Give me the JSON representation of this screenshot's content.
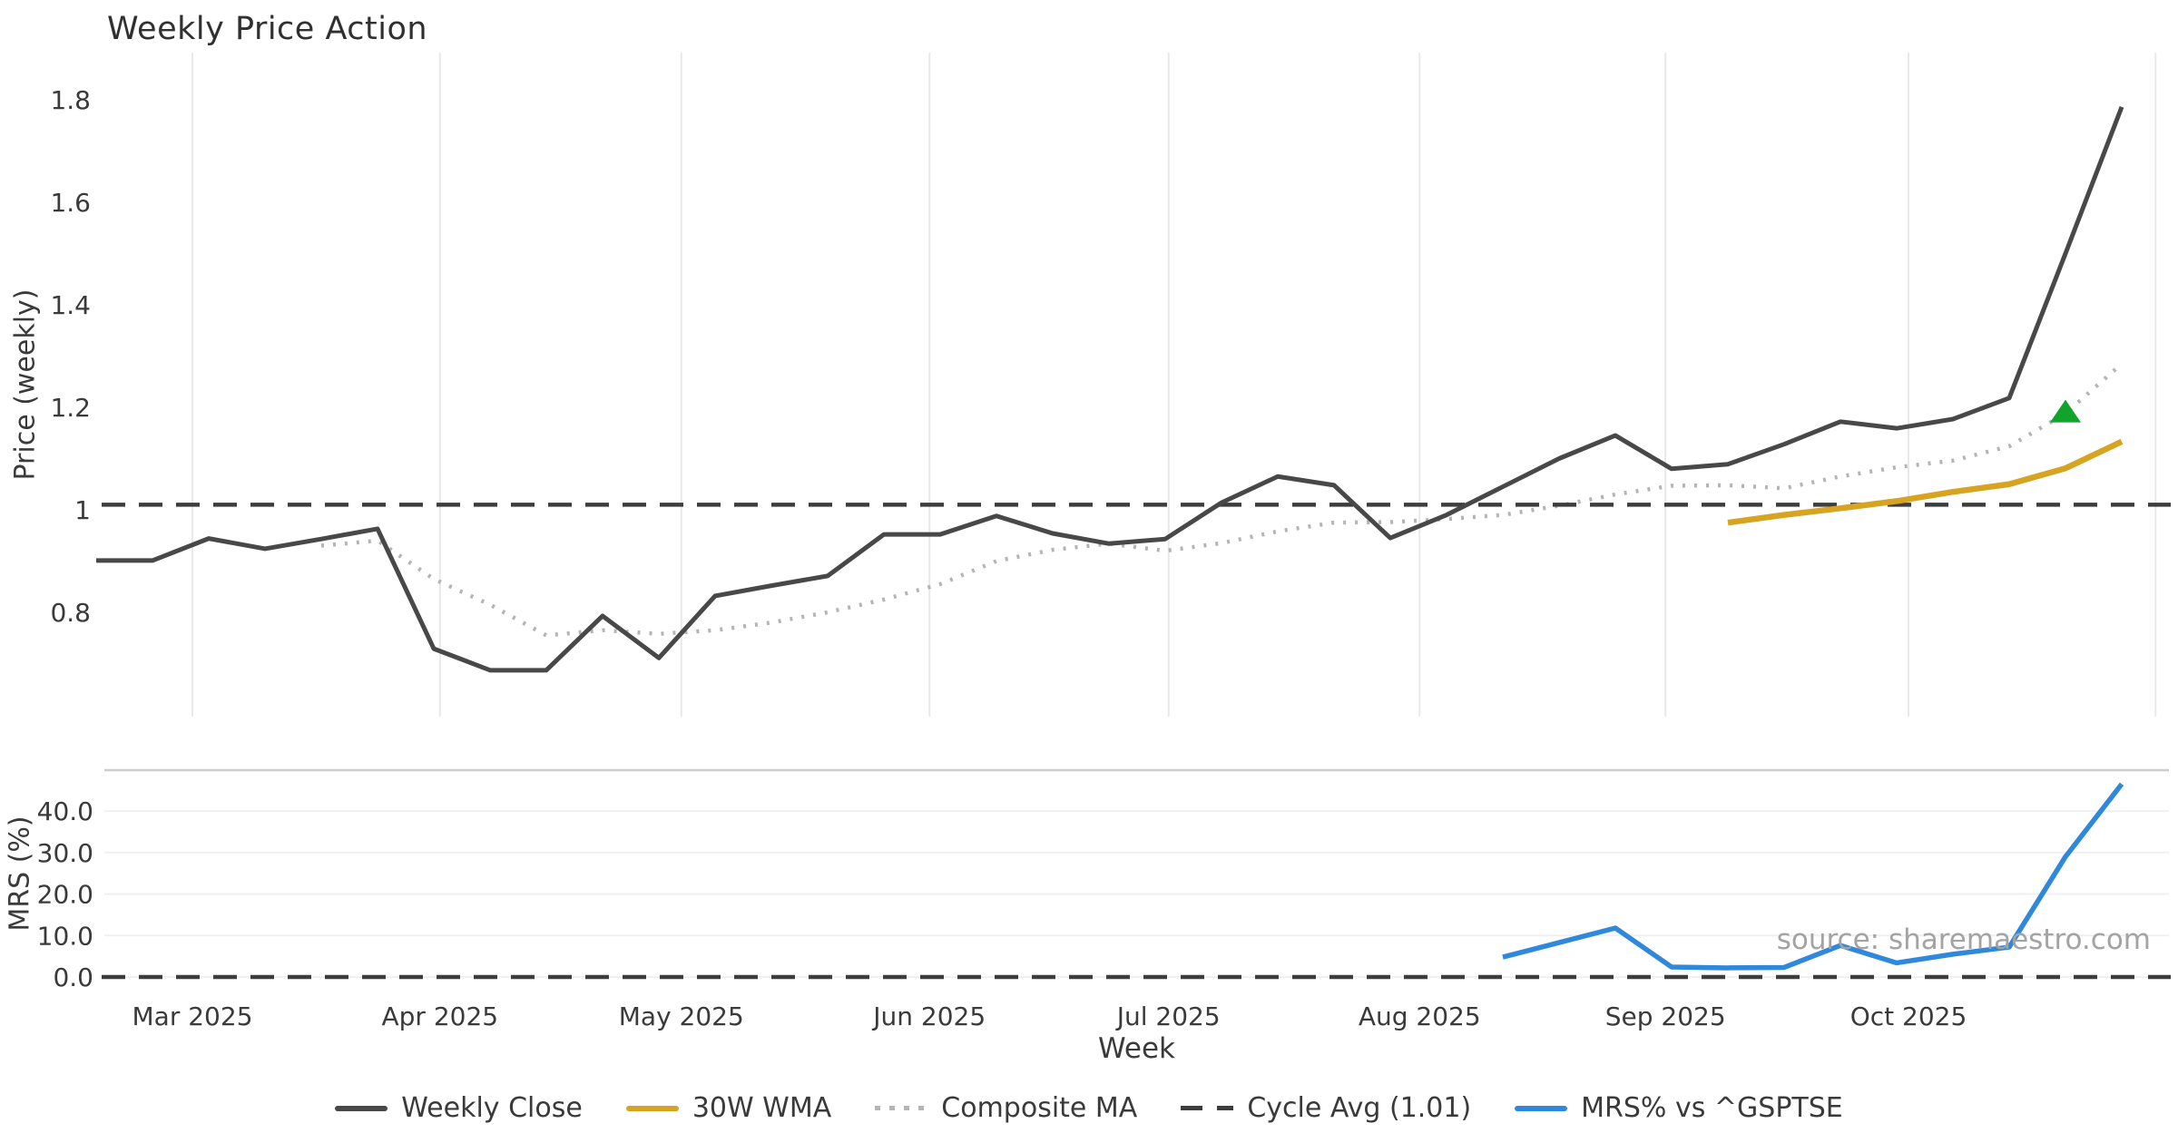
{
  "title": "Weekly Price Action",
  "source_text": "source: sharemaestro.com",
  "axes": {
    "price_axis_label": "Price (weekly)",
    "mrs_axis_label": "MRS (%)",
    "x_axis_label": "Week",
    "price_ticks": [
      {
        "label": "1.8",
        "value": 1.8
      },
      {
        "label": "1.6",
        "value": 1.6
      },
      {
        "label": "1.4",
        "value": 1.4
      },
      {
        "label": "1.2",
        "value": 1.2
      },
      {
        "label": "1",
        "value": 1.0
      },
      {
        "label": "0.8",
        "value": 0.8
      }
    ],
    "mrs_ticks": [
      {
        "label": "40.0",
        "value": 40
      },
      {
        "label": "30.0",
        "value": 30
      },
      {
        "label": "20.0",
        "value": 20
      },
      {
        "label": "10.0",
        "value": 10
      },
      {
        "label": "0.0",
        "value": 0
      }
    ],
    "month_ticks": [
      {
        "label": "Mar 2025",
        "week": 1.71
      },
      {
        "label": "Apr 2025",
        "week": 6.11
      },
      {
        "label": "May 2025",
        "week": 10.4
      },
      {
        "label": "Jun 2025",
        "week": 14.81
      },
      {
        "label": "Jul 2025",
        "week": 19.06
      },
      {
        "label": "Aug 2025",
        "week": 23.52
      },
      {
        "label": "Sep 2025",
        "week": 27.89
      },
      {
        "label": "Oct 2025",
        "week": 32.21
      }
    ],
    "extra_gridline_week": 36.6
  },
  "chart_data": {
    "type": "line",
    "x_unit": "week_index",
    "panels": [
      {
        "name": "price",
        "ylabel": "Price (weekly)",
        "ylim": [
          0.596,
          1.888
        ],
        "grid": "vertical-months",
        "series": [
          {
            "name": "Weekly Close",
            "color": "#484848",
            "style": "solid",
            "width": 5,
            "start_week": 0,
            "values": [
              0.901,
              0.901,
              0.944,
              0.924,
              0.943,
              0.963,
              0.729,
              0.687,
              0.687,
              0.793,
              0.711,
              0.832,
              0.852,
              0.871,
              0.952,
              0.952,
              0.988,
              0.954,
              0.934,
              0.943,
              1.014,
              1.065,
              1.048,
              0.945,
              0.99,
              1.045,
              1.1,
              1.145,
              1.08,
              1.089,
              1.128,
              1.172,
              1.159,
              1.177,
              1.218,
              1.5,
              1.786
            ]
          },
          {
            "name": "30W WMA",
            "color": "#d7a422",
            "style": "solid",
            "width": 6.5,
            "start_week": 29,
            "values": [
              0.975,
              0.99,
              1.003,
              1.017,
              1.035,
              1.05,
              1.081,
              1.133
            ]
          },
          {
            "name": "Composite MA",
            "color": "#b4b4b4",
            "style": "dotted",
            "width": 4.5,
            "start_week": 4,
            "values": [
              0.93,
              0.94,
              0.865,
              0.815,
              0.755,
              0.765,
              0.758,
              0.765,
              0.78,
              0.8,
              0.825,
              0.855,
              0.9,
              0.922,
              0.934,
              0.92,
              0.935,
              0.958,
              0.975,
              0.976,
              0.982,
              0.99,
              1.008,
              1.03,
              1.047,
              1.048,
              1.042,
              1.065,
              1.083,
              1.096,
              1.124,
              1.188,
              1.285
            ]
          },
          {
            "name": "Cycle Avg (1.01)",
            "color": "#3d3d3d",
            "style": "dashed",
            "width": 4.5,
            "constant": 1.01
          }
        ],
        "marker": {
          "shape": "triangle-up",
          "week": 35,
          "price": 1.19,
          "color": "#12a32a"
        }
      },
      {
        "name": "mrs",
        "ylabel": "MRS (%)",
        "ylim": [
          -2,
          50
        ],
        "grid": "horizontal",
        "series": [
          {
            "name": "MRS% vs ^GSPTSE",
            "color": "#2f88dc",
            "style": "solid",
            "width": 5.5,
            "start_week": 25,
            "values": [
              4.8,
              8.3,
              11.8,
              2.4,
              2.2,
              2.3,
              7.6,
              3.4,
              5.5,
              7.2,
              29.0,
              46.5
            ]
          },
          {
            "name": "zero line",
            "color": "#3d3d3d",
            "style": "dashed",
            "width": 4.5,
            "constant": 0
          }
        ]
      }
    ],
    "xlabel": "Week",
    "title": "Weekly Price Action"
  },
  "legend": {
    "items": [
      {
        "label": "Weekly Close"
      },
      {
        "label": "30W WMA"
      },
      {
        "label": "Composite MA"
      },
      {
        "label": "Cycle Avg (1.01)"
      },
      {
        "label": "MRS% vs ^GSPTSE"
      }
    ]
  },
  "colors": {
    "weekly_close": "#484848",
    "wma": "#d7a422",
    "composite": "#b4b4b4",
    "dashed": "#3d3d3d",
    "mrs": "#2f88dc",
    "marker_green": "#12a32a",
    "grid_top": "#e9e9e9",
    "grid_bottom": "#eef1f4",
    "separator": "#cccccc",
    "tick_text": "#3a3a3a"
  }
}
